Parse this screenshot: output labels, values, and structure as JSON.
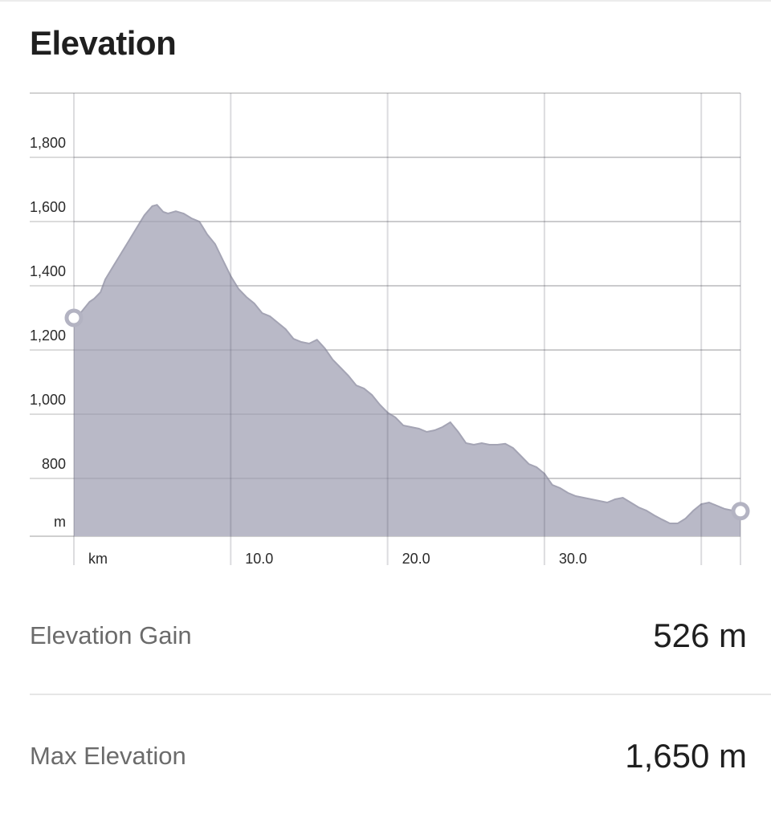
{
  "header": {
    "title": "Elevation"
  },
  "chart_data": {
    "type": "area",
    "title": "Elevation",
    "xlabel": "km",
    "ylabel": "m",
    "xlim": [
      0,
      42.5
    ],
    "ylim": [
      620,
      2000
    ],
    "y_ticks": [
      800,
      1000,
      1200,
      1400,
      1600,
      1800
    ],
    "y_tick_labels": [
      "800",
      "1,000",
      "1,200",
      "1,400",
      "1,600",
      "1,800"
    ],
    "x_ticks": [
      10,
      20,
      30
    ],
    "x_tick_labels": [
      "10.0",
      "20.0",
      "30.0"
    ],
    "grid": true,
    "fill_color": "#b9b9c7",
    "line_color": "#a4a4b4",
    "marker_color": "#b3b3c2",
    "series": [
      {
        "x": [
          0,
          0.5,
          1.0,
          1.3,
          1.7,
          2.0,
          2.5,
          3.0,
          3.5,
          4.0,
          4.5,
          5.0,
          5.3,
          5.7,
          6.0,
          6.5,
          7.0,
          7.5,
          8.0,
          8.5,
          9.0,
          9.5,
          10.0,
          10.5,
          11.0,
          11.5,
          12.0,
          12.5,
          13.0,
          13.5,
          14.0,
          14.5,
          15.0,
          15.5,
          16.0,
          16.5,
          17.0,
          17.5,
          18.0,
          18.5,
          19.0,
          19.5,
          20.0,
          20.5,
          21.0,
          21.5,
          22.0,
          22.5,
          23.0,
          23.5,
          24.0,
          24.5,
          25.0,
          25.5,
          26.0,
          26.5,
          27.0,
          27.5,
          28.0,
          28.5,
          29.0,
          29.5,
          30.0,
          30.5,
          31.0,
          31.5,
          32.0,
          32.5,
          33.0,
          33.5,
          34.0,
          34.5,
          35.0,
          35.5,
          36.0,
          36.5,
          37.0,
          37.5,
          38.0,
          38.5,
          39.0,
          39.5,
          40.0,
          40.5,
          41.0,
          41.5,
          42.0,
          42.5
        ],
        "values": [
          1300,
          1320,
          1350,
          1360,
          1380,
          1420,
          1460,
          1500,
          1540,
          1580,
          1620,
          1648,
          1652,
          1630,
          1625,
          1632,
          1625,
          1610,
          1600,
          1560,
          1530,
          1480,
          1430,
          1390,
          1365,
          1345,
          1315,
          1305,
          1285,
          1265,
          1235,
          1225,
          1220,
          1232,
          1205,
          1170,
          1145,
          1120,
          1090,
          1080,
          1060,
          1030,
          1005,
          990,
          965,
          960,
          955,
          945,
          950,
          960,
          975,
          945,
          910,
          905,
          910,
          905,
          905,
          908,
          895,
          870,
          845,
          835,
          815,
          780,
          770,
          755,
          745,
          740,
          735,
          730,
          725,
          735,
          740,
          725,
          710,
          700,
          685,
          672,
          660,
          660,
          675,
          700,
          720,
          725,
          715,
          705,
          700,
          698
        ]
      }
    ],
    "start_marker_value": 1300,
    "end_marker_value": 698
  },
  "stats": {
    "elevation_gain": {
      "label": "Elevation Gain",
      "value": "526 m"
    },
    "max_elevation": {
      "label": "Max Elevation",
      "value": "1,650 m"
    }
  }
}
